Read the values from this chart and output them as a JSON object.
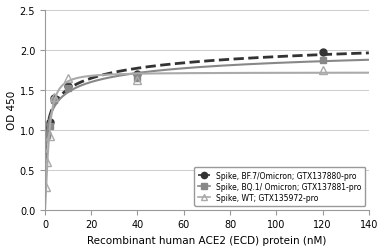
{
  "title": "",
  "xlabel": "Recombinant human ACE2 (ECD) protein (nM)",
  "ylabel": "OD 450",
  "xlim": [
    0,
    140
  ],
  "ylim": [
    0,
    2.5
  ],
  "xticks": [
    0,
    20,
    40,
    60,
    80,
    100,
    120,
    140
  ],
  "yticks": [
    0,
    0.5,
    1,
    1.5,
    2,
    2.5
  ],
  "series": [
    {
      "label": "Spike, BF.7/Omicron; GTX137880-pro",
      "x": [
        0.5,
        1,
        2,
        4,
        10,
        40,
        120
      ],
      "y": [
        0.93,
        0.95,
        1.1,
        1.4,
        1.55,
        1.7,
        1.97
      ],
      "color": "#333333",
      "linestyle": "--",
      "linewidth": 2.0,
      "marker": "o",
      "markersize": 5
    },
    {
      "label": "Spike, BQ.1/ Omicron; GTX137881-pro",
      "x": [
        0.5,
        1,
        2,
        4,
        10,
        40,
        120
      ],
      "y": [
        0.91,
        0.93,
        1.05,
        1.37,
        1.52,
        1.65,
        1.88
      ],
      "color": "#888888",
      "linestyle": "-",
      "linewidth": 1.5,
      "marker": "s",
      "markersize": 5
    },
    {
      "label": "Spike, WT; GTX135972-pro",
      "x": [
        0.5,
        1,
        2,
        4,
        10,
        40,
        120
      ],
      "y": [
        0.28,
        0.6,
        0.92,
        1.41,
        1.65,
        1.62,
        1.75
      ],
      "color": "#aaaaaa",
      "linestyle": "-",
      "linewidth": 1.5,
      "marker": "^",
      "markersize": 6
    }
  ],
  "legend_loc": "lower right",
  "background_color": "#ffffff",
  "grid_color": "#cccccc"
}
